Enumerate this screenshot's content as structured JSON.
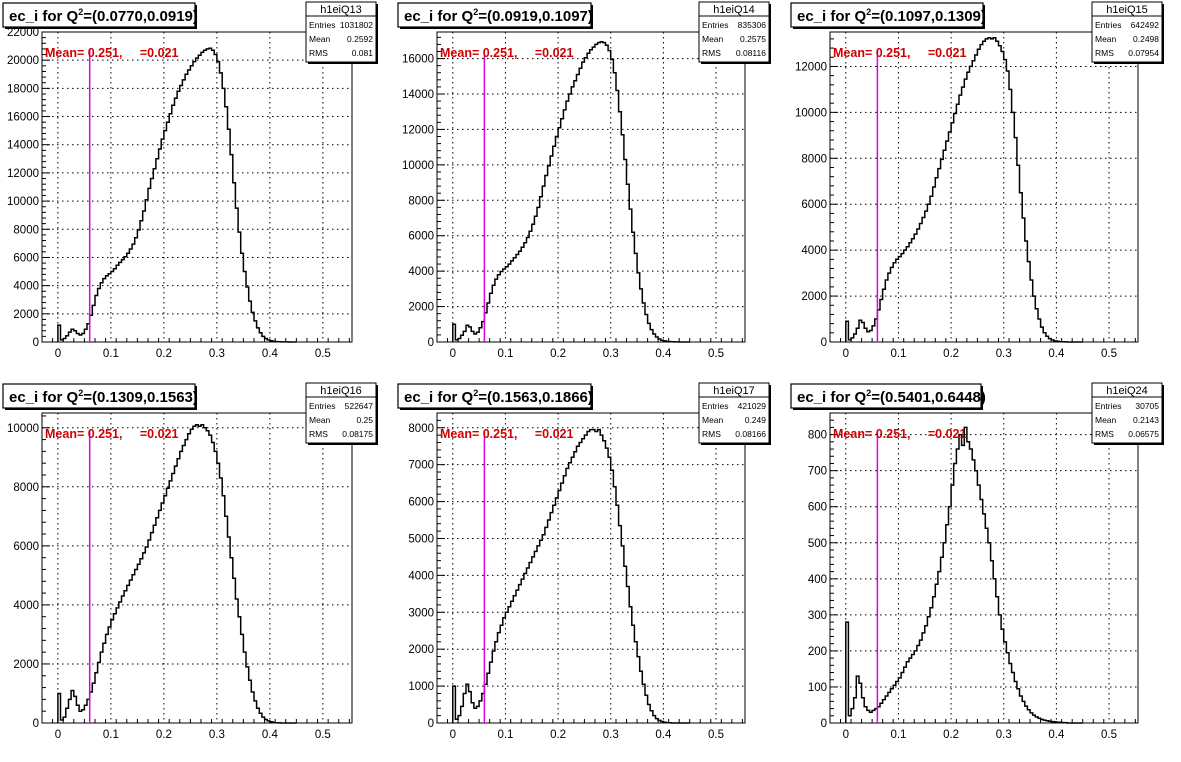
{
  "colors": {
    "mean_line": "#e000e0",
    "annotation": "#d10000",
    "histogram": "#000000",
    "grid": "#000000"
  },
  "annotation_label": "Mean= 0.251,     =0.021",
  "stats_labels": {
    "entries": "Entries",
    "mean": "Mean",
    "rms": "RMS"
  },
  "chart_data": [
    {
      "type": "histogram",
      "title_prefix": "ec_i for Q",
      "title_sup": "2",
      "title_suffix": "=(0.0770,0.0919)",
      "stats": {
        "name": "h1eiQ13",
        "entries": "1031802",
        "mean": "0.2592",
        "rms": "0.081"
      },
      "xlim": [
        -0.03,
        0.555
      ],
      "ylim": [
        0,
        22000
      ],
      "xticks": [
        0,
        0.1,
        0.2,
        0.3,
        0.4,
        0.5
      ],
      "yticks": [
        0,
        2000,
        4000,
        6000,
        8000,
        10000,
        12000,
        14000,
        16000,
        18000,
        20000,
        22000
      ],
      "mean_line_x": 0.06,
      "bin_edges": [
        0,
        0.005,
        0.01,
        0.015,
        0.02,
        0.025,
        0.03,
        0.035,
        0.04,
        0.045,
        0.05,
        0.055,
        0.06,
        0.065,
        0.07,
        0.075,
        0.08,
        0.085,
        0.09,
        0.095,
        0.1,
        0.105,
        0.11,
        0.115,
        0.12,
        0.125,
        0.13,
        0.135,
        0.14,
        0.145,
        0.15,
        0.155,
        0.16,
        0.165,
        0.17,
        0.175,
        0.18,
        0.185,
        0.19,
        0.195,
        0.2,
        0.205,
        0.21,
        0.215,
        0.22,
        0.225,
        0.23,
        0.235,
        0.24,
        0.245,
        0.25,
        0.255,
        0.26,
        0.265,
        0.27,
        0.275,
        0.28,
        0.285,
        0.29,
        0.295,
        0.3,
        0.305,
        0.31,
        0.315,
        0.32,
        0.325,
        0.33,
        0.335,
        0.34,
        0.345,
        0.35,
        0.355,
        0.36,
        0.365,
        0.37,
        0.375,
        0.38,
        0.385,
        0.39,
        0.395,
        0.4,
        0.405,
        0.41,
        0.415,
        0.42,
        0.425,
        0.43,
        0.435,
        0.44,
        0.445,
        0.45
      ],
      "values": [
        1200,
        150,
        250,
        450,
        700,
        900,
        800,
        600,
        500,
        600,
        900,
        1300,
        1900,
        2600,
        3300,
        3800,
        4200,
        4500,
        4700,
        4850,
        5000,
        5200,
        5450,
        5650,
        5850,
        6050,
        6300,
        6600,
        6950,
        7400,
        7950,
        8600,
        9300,
        10100,
        10900,
        11600,
        12300,
        13000,
        13700,
        14400,
        15000,
        15600,
        16200,
        16800,
        17300,
        17800,
        18200,
        18600,
        19000,
        19300,
        19600,
        19900,
        20150,
        20350,
        20550,
        20700,
        20800,
        20850,
        20700,
        20400,
        19900,
        19100,
        18000,
        16700,
        15100,
        13300,
        11300,
        9500,
        7800,
        6300,
        5000,
        3900,
        2900,
        2100,
        1500,
        1000,
        650,
        400,
        250,
        150,
        90,
        50,
        30,
        20,
        10,
        5,
        5,
        0,
        0,
        0
      ]
    },
    {
      "type": "histogram",
      "title_prefix": "ec_i for Q",
      "title_sup": "2",
      "title_suffix": "=(0.0919,0.1097)",
      "stats": {
        "name": "h1eiQ14",
        "entries": "835306",
        "mean": "0.2575",
        "rms": "0.08116"
      },
      "xlim": [
        -0.03,
        0.555
      ],
      "ylim": [
        0,
        17500
      ],
      "xticks": [
        0,
        0.1,
        0.2,
        0.3,
        0.4,
        0.5
      ],
      "yticks": [
        0,
        2000,
        4000,
        6000,
        8000,
        10000,
        12000,
        14000,
        16000
      ],
      "mean_line_x": 0.06,
      "bin_edges": [
        0,
        0.005,
        0.01,
        0.015,
        0.02,
        0.025,
        0.03,
        0.035,
        0.04,
        0.045,
        0.05,
        0.055,
        0.06,
        0.065,
        0.07,
        0.075,
        0.08,
        0.085,
        0.09,
        0.095,
        0.1,
        0.105,
        0.11,
        0.115,
        0.12,
        0.125,
        0.13,
        0.135,
        0.14,
        0.145,
        0.15,
        0.155,
        0.16,
        0.165,
        0.17,
        0.175,
        0.18,
        0.185,
        0.19,
        0.195,
        0.2,
        0.205,
        0.21,
        0.215,
        0.22,
        0.225,
        0.23,
        0.235,
        0.24,
        0.245,
        0.25,
        0.255,
        0.26,
        0.265,
        0.27,
        0.275,
        0.28,
        0.285,
        0.29,
        0.295,
        0.3,
        0.305,
        0.31,
        0.315,
        0.32,
        0.325,
        0.33,
        0.335,
        0.34,
        0.345,
        0.35,
        0.355,
        0.36,
        0.365,
        0.37,
        0.375,
        0.38,
        0.385,
        0.39,
        0.395,
        0.4,
        0.405,
        0.41,
        0.415,
        0.42,
        0.425,
        0.43,
        0.435,
        0.44,
        0.445,
        0.45
      ],
      "values": [
        1000,
        120,
        200,
        380,
        600,
        950,
        850,
        600,
        450,
        550,
        800,
        1150,
        1650,
        2200,
        2750,
        3200,
        3550,
        3800,
        3980,
        4120,
        4250,
        4400,
        4580,
        4760,
        4940,
        5120,
        5350,
        5600,
        5900,
        6250,
        6650,
        7100,
        7600,
        8200,
        8800,
        9400,
        9950,
        10500,
        11050,
        11600,
        12100,
        12600,
        13100,
        13600,
        14000,
        14400,
        14750,
        15100,
        15450,
        15800,
        16050,
        16300,
        16500,
        16650,
        16800,
        16900,
        16950,
        16900,
        16750,
        16450,
        15950,
        15200,
        14200,
        13000,
        11700,
        10300,
        8900,
        7500,
        6200,
        5000,
        3900,
        3000,
        2200,
        1550,
        1050,
        700,
        450,
        280,
        170,
        100,
        60,
        35,
        20,
        10,
        5,
        5,
        0,
        0,
        0,
        0
      ]
    },
    {
      "type": "histogram",
      "title_prefix": "ec_i for Q",
      "title_sup": "2",
      "title_suffix": "=(0.1097,0.1309)",
      "stats": {
        "name": "h1eiQ15",
        "entries": "642492",
        "mean": "0.2498",
        "rms": "0.07954"
      },
      "xlim": [
        -0.03,
        0.555
      ],
      "ylim": [
        0,
        13500
      ],
      "xticks": [
        0,
        0.1,
        0.2,
        0.3,
        0.4,
        0.5
      ],
      "yticks": [
        0,
        2000,
        4000,
        6000,
        8000,
        10000,
        12000
      ],
      "mean_line_x": 0.06,
      "bin_edges": [
        0,
        0.005,
        0.01,
        0.015,
        0.02,
        0.025,
        0.03,
        0.035,
        0.04,
        0.045,
        0.05,
        0.055,
        0.06,
        0.065,
        0.07,
        0.075,
        0.08,
        0.085,
        0.09,
        0.095,
        0.1,
        0.105,
        0.11,
        0.115,
        0.12,
        0.125,
        0.13,
        0.135,
        0.14,
        0.145,
        0.15,
        0.155,
        0.16,
        0.165,
        0.17,
        0.175,
        0.18,
        0.185,
        0.19,
        0.195,
        0.2,
        0.205,
        0.21,
        0.215,
        0.22,
        0.225,
        0.23,
        0.235,
        0.24,
        0.245,
        0.25,
        0.255,
        0.26,
        0.265,
        0.27,
        0.275,
        0.28,
        0.285,
        0.29,
        0.295,
        0.3,
        0.305,
        0.31,
        0.315,
        0.32,
        0.325,
        0.33,
        0.335,
        0.34,
        0.345,
        0.35,
        0.355,
        0.36,
        0.365,
        0.37,
        0.375,
        0.38,
        0.385,
        0.39,
        0.395,
        0.4,
        0.405,
        0.41,
        0.415,
        0.42,
        0.425,
        0.43,
        0.435,
        0.44,
        0.445,
        0.45
      ],
      "values": [
        900,
        100,
        180,
        350,
        600,
        950,
        850,
        600,
        450,
        500,
        700,
        1000,
        1400,
        1850,
        2300,
        2700,
        3000,
        3250,
        3450,
        3600,
        3720,
        3850,
        4000,
        4150,
        4320,
        4500,
        4700,
        4920,
        5160,
        5420,
        5700,
        6000,
        6350,
        6750,
        7150,
        7550,
        7950,
        8350,
        8750,
        9150,
        9550,
        9950,
        10350,
        10750,
        11100,
        11450,
        11750,
        12000,
        12250,
        12500,
        12750,
        12950,
        13100,
        13200,
        13250,
        13200,
        13250,
        13100,
        12900,
        12650,
        12300,
        11800,
        11000,
        10000,
        8900,
        7700,
        6500,
        5400,
        4400,
        3500,
        2700,
        2000,
        1450,
        1000,
        650,
        400,
        250,
        150,
        90,
        50,
        30,
        15,
        10,
        5,
        0,
        0,
        0,
        0,
        0,
        0
      ]
    },
    {
      "type": "histogram",
      "title_prefix": "ec_i for Q",
      "title_sup": "2",
      "title_suffix": "=(0.1309,0.1563)",
      "stats": {
        "name": "h1eiQ16",
        "entries": "522647",
        "mean": "0.25",
        "rms": "0.08175"
      },
      "xlim": [
        -0.03,
        0.555
      ],
      "ylim": [
        0,
        10500
      ],
      "xticks": [
        0,
        0.1,
        0.2,
        0.3,
        0.4,
        0.5
      ],
      "yticks": [
        0,
        2000,
        4000,
        6000,
        8000,
        10000
      ],
      "mean_line_x": 0.06,
      "bin_edges": [
        0,
        0.005,
        0.01,
        0.015,
        0.02,
        0.025,
        0.03,
        0.035,
        0.04,
        0.045,
        0.05,
        0.055,
        0.06,
        0.065,
        0.07,
        0.075,
        0.08,
        0.085,
        0.09,
        0.095,
        0.1,
        0.105,
        0.11,
        0.115,
        0.12,
        0.125,
        0.13,
        0.135,
        0.14,
        0.145,
        0.15,
        0.155,
        0.16,
        0.165,
        0.17,
        0.175,
        0.18,
        0.185,
        0.19,
        0.195,
        0.2,
        0.205,
        0.21,
        0.215,
        0.22,
        0.225,
        0.23,
        0.235,
        0.24,
        0.245,
        0.25,
        0.255,
        0.26,
        0.265,
        0.27,
        0.275,
        0.28,
        0.285,
        0.29,
        0.295,
        0.3,
        0.305,
        0.31,
        0.315,
        0.32,
        0.325,
        0.33,
        0.335,
        0.34,
        0.345,
        0.35,
        0.355,
        0.36,
        0.365,
        0.37,
        0.375,
        0.38,
        0.385,
        0.39,
        0.395,
        0.4,
        0.405,
        0.41,
        0.415,
        0.42,
        0.425,
        0.43,
        0.435,
        0.44,
        0.445,
        0.45
      ],
      "values": [
        1000,
        100,
        200,
        500,
        800,
        1100,
        900,
        600,
        400,
        450,
        600,
        800,
        1050,
        1350,
        1700,
        2050,
        2400,
        2700,
        3000,
        3250,
        3500,
        3700,
        3900,
        4100,
        4300,
        4480,
        4660,
        4840,
        5020,
        5200,
        5380,
        5560,
        5760,
        5960,
        6200,
        6450,
        6700,
        6950,
        7200,
        7450,
        7700,
        7950,
        8200,
        8450,
        8700,
        8950,
        9200,
        9400,
        9600,
        9800,
        9950,
        10050,
        10100,
        10050,
        10100,
        10000,
        9900,
        9750,
        9500,
        9200,
        8800,
        8300,
        7700,
        7000,
        6300,
        5600,
        4900,
        4200,
        3600,
        3000,
        2400,
        1900,
        1450,
        1050,
        750,
        500,
        330,
        200,
        120,
        70,
        40,
        20,
        10,
        5,
        0,
        0,
        0,
        0,
        0,
        0
      ]
    },
    {
      "type": "histogram",
      "title_prefix": "ec_i for Q",
      "title_sup": "2",
      "title_suffix": "=(0.1563,0.1866)",
      "stats": {
        "name": "h1eiQ17",
        "entries": "421029",
        "mean": "0.249",
        "rms": "0.08166"
      },
      "xlim": [
        -0.03,
        0.555
      ],
      "ylim": [
        0,
        8400
      ],
      "xticks": [
        0,
        0.1,
        0.2,
        0.3,
        0.4,
        0.5
      ],
      "yticks": [
        0,
        1000,
        2000,
        3000,
        4000,
        5000,
        6000,
        7000,
        8000
      ],
      "mean_line_x": 0.06,
      "bin_edges": [
        0,
        0.005,
        0.01,
        0.015,
        0.02,
        0.025,
        0.03,
        0.035,
        0.04,
        0.045,
        0.05,
        0.055,
        0.06,
        0.065,
        0.07,
        0.075,
        0.08,
        0.085,
        0.09,
        0.095,
        0.1,
        0.105,
        0.11,
        0.115,
        0.12,
        0.125,
        0.13,
        0.135,
        0.14,
        0.145,
        0.15,
        0.155,
        0.16,
        0.165,
        0.17,
        0.175,
        0.18,
        0.185,
        0.19,
        0.195,
        0.2,
        0.205,
        0.21,
        0.215,
        0.22,
        0.225,
        0.23,
        0.235,
        0.24,
        0.245,
        0.25,
        0.255,
        0.26,
        0.265,
        0.27,
        0.275,
        0.28,
        0.285,
        0.29,
        0.295,
        0.3,
        0.305,
        0.31,
        0.315,
        0.32,
        0.325,
        0.33,
        0.335,
        0.34,
        0.345,
        0.35,
        0.355,
        0.36,
        0.365,
        0.37,
        0.375,
        0.38,
        0.385,
        0.39,
        0.395,
        0.4,
        0.405,
        0.41,
        0.415,
        0.42,
        0.425,
        0.43,
        0.435,
        0.44,
        0.445,
        0.45
      ],
      "values": [
        1000,
        100,
        200,
        450,
        800,
        1050,
        850,
        550,
        400,
        450,
        600,
        800,
        1050,
        1350,
        1650,
        1950,
        2200,
        2450,
        2650,
        2850,
        3000,
        3150,
        3300,
        3450,
        3600,
        3750,
        3900,
        4050,
        4200,
        4350,
        4500,
        4650,
        4800,
        4950,
        5100,
        5300,
        5500,
        5700,
        5900,
        6100,
        6300,
        6500,
        6700,
        6900,
        7050,
        7200,
        7350,
        7500,
        7600,
        7700,
        7800,
        7900,
        7950,
        7950,
        7900,
        7950,
        7800,
        7650,
        7450,
        7200,
        6850,
        6400,
        5900,
        5350,
        4800,
        4250,
        3700,
        3150,
        2650,
        2200,
        1800,
        1400,
        1050,
        750,
        500,
        330,
        200,
        120,
        70,
        40,
        20,
        10,
        5,
        0,
        0,
        0,
        0,
        0,
        0,
        0
      ]
    },
    {
      "type": "histogram",
      "title_prefix": "ec_i for Q",
      "title_sup": "2",
      "title_suffix": "=(0.5401,0.6448)",
      "stats": {
        "name": "h1eiQ24",
        "entries": "30705",
        "mean": "0.2143",
        "rms": "0.06575"
      },
      "xlim": [
        -0.03,
        0.555
      ],
      "ylim": [
        0,
        860
      ],
      "xticks": [
        0,
        0.1,
        0.2,
        0.3,
        0.4,
        0.5
      ],
      "yticks": [
        0,
        100,
        200,
        300,
        400,
        500,
        600,
        700,
        800
      ],
      "mean_line_x": 0.06,
      "bin_edges": [
        0,
        0.005,
        0.01,
        0.015,
        0.02,
        0.025,
        0.03,
        0.035,
        0.04,
        0.045,
        0.05,
        0.055,
        0.06,
        0.065,
        0.07,
        0.075,
        0.08,
        0.085,
        0.09,
        0.095,
        0.1,
        0.105,
        0.11,
        0.115,
        0.12,
        0.125,
        0.13,
        0.135,
        0.14,
        0.145,
        0.15,
        0.155,
        0.16,
        0.165,
        0.17,
        0.175,
        0.18,
        0.185,
        0.19,
        0.195,
        0.2,
        0.205,
        0.21,
        0.215,
        0.22,
        0.225,
        0.23,
        0.235,
        0.24,
        0.245,
        0.25,
        0.255,
        0.26,
        0.265,
        0.27,
        0.275,
        0.28,
        0.285,
        0.29,
        0.295,
        0.3,
        0.305,
        0.31,
        0.315,
        0.32,
        0.325,
        0.33,
        0.335,
        0.34,
        0.345,
        0.35,
        0.355,
        0.36,
        0.365,
        0.37,
        0.375,
        0.38,
        0.385,
        0.39,
        0.395,
        0.4,
        0.405,
        0.41,
        0.415,
        0.42,
        0.425,
        0.43,
        0.435,
        0.44,
        0.445,
        0.45
      ],
      "values": [
        280,
        20,
        40,
        70,
        130,
        110,
        70,
        45,
        35,
        30,
        35,
        40,
        45,
        55,
        65,
        75,
        85,
        95,
        105,
        115,
        125,
        140,
        155,
        170,
        180,
        190,
        200,
        215,
        230,
        250,
        270,
        295,
        320,
        350,
        385,
        420,
        460,
        500,
        550,
        600,
        660,
        720,
        760,
        800,
        770,
        820,
        780,
        760,
        730,
        700,
        660,
        620,
        580,
        540,
        500,
        450,
        400,
        350,
        300,
        260,
        225,
        195,
        165,
        140,
        115,
        95,
        75,
        60,
        47,
        37,
        28,
        22,
        17,
        13,
        10,
        8,
        6,
        5,
        4,
        3,
        2,
        2,
        1,
        1,
        0,
        0,
        0,
        0,
        0,
        0
      ]
    }
  ]
}
